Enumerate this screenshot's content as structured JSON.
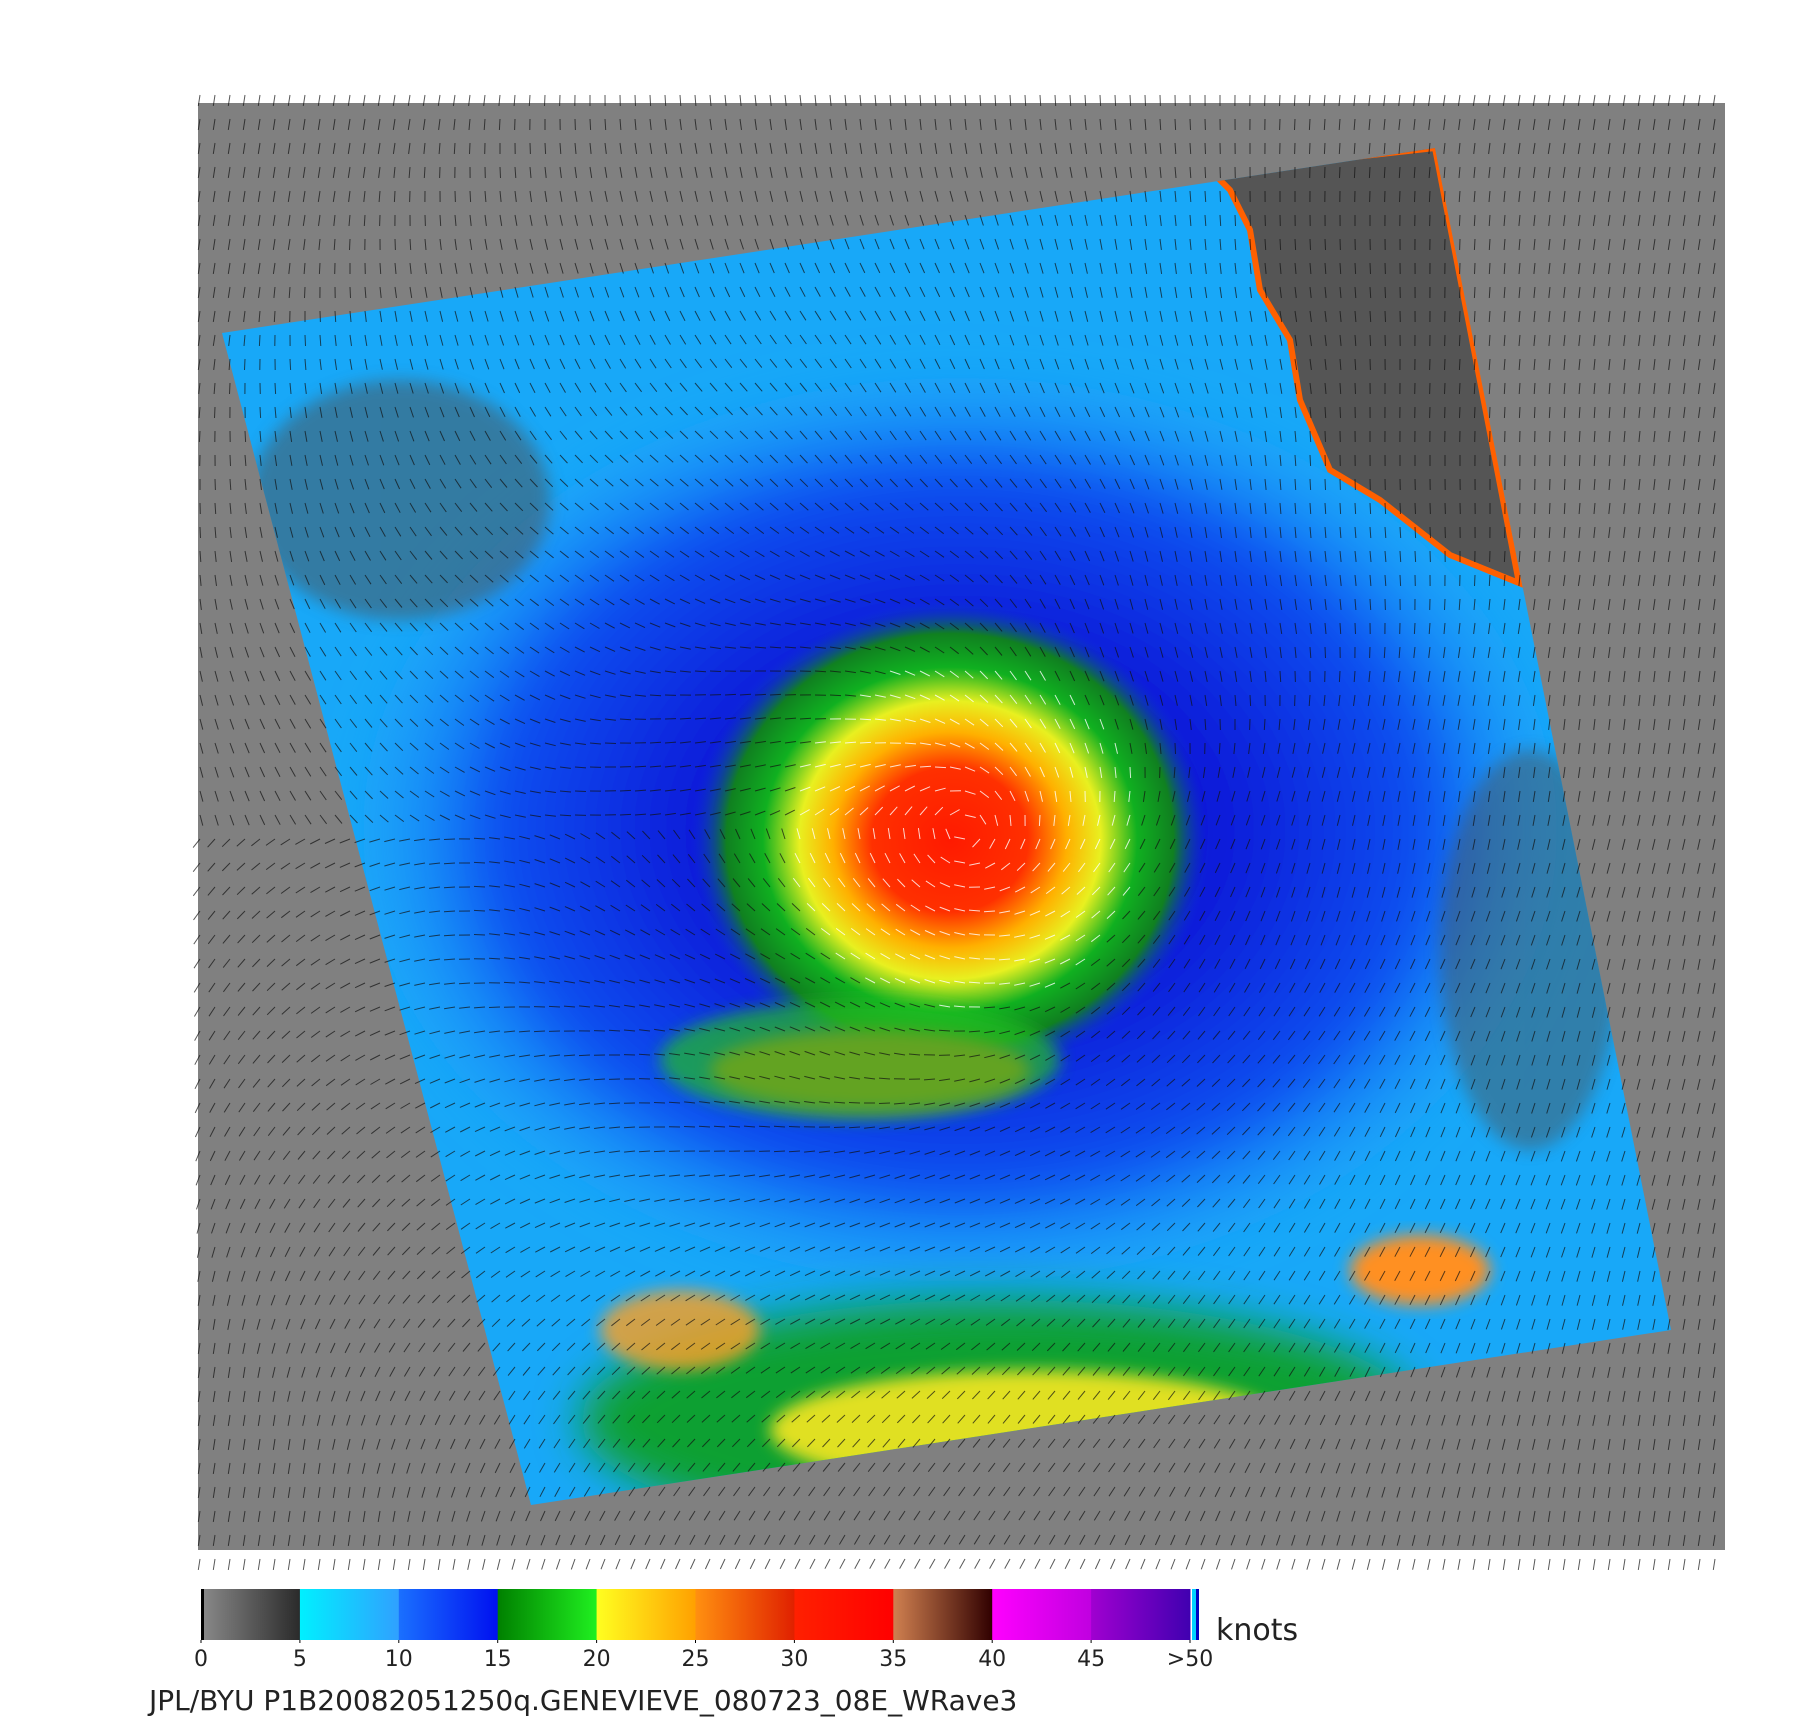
{
  "colorbar": {
    "lim": [
      0,
      50
    ],
    "ticks": [
      0,
      5,
      10,
      15,
      20,
      25,
      30,
      35,
      40,
      45,
      {
        "value": 50,
        "label": ">50"
      }
    ],
    "unit": "knots",
    "colors": [
      [
        "#8a8a8a",
        "#2a2a2a"
      ],
      [
        "#00f0ff",
        "#30a0ff"
      ],
      [
        "#1a70ff",
        "#0010f0"
      ],
      [
        "#008000",
        "#20f020"
      ],
      [
        "#ffff20",
        "#ffa000"
      ],
      [
        "#ff9010",
        "#e02000"
      ],
      [
        "#ff2000",
        "#ff0000"
      ],
      [
        "#d08050",
        "#300000"
      ],
      [
        "#ff00ff",
        "#c000e0"
      ],
      [
        "#a000d0",
        "#4000b0"
      ]
    ]
  },
  "caption": "JPL/BYU  P1B20082051250q.GENEVIEVE_080723_08E_WRave3"
}
